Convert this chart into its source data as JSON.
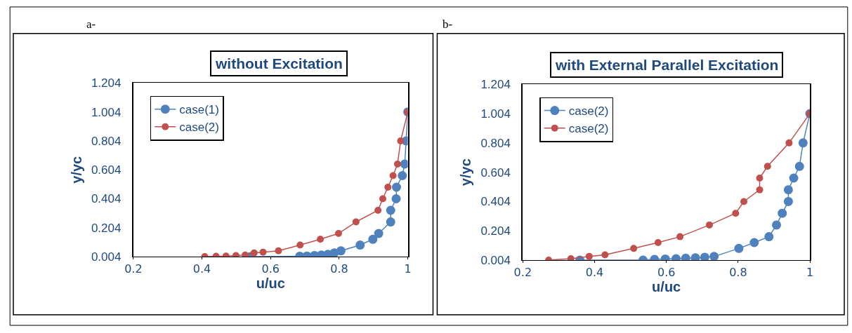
{
  "chart_data": [
    {
      "type": "line",
      "title": "without Excitation",
      "xlabel": "u/uc",
      "ylabel": "y/yc",
      "annotations": [
        "a-"
      ],
      "xlim": [
        0.2,
        1
      ],
      "xticks": [
        0.2,
        0.4,
        0.6,
        0.8,
        1
      ],
      "ylim": [
        0.004,
        1.204
      ],
      "yticks": [
        0.004,
        0.204,
        0.404,
        0.604,
        0.804,
        1.004,
        1.204
      ],
      "grid": false,
      "legend": "top left",
      "marker": "circle",
      "line_style": "solid",
      "series": [
        {
          "name": "case(1)",
          "color": "#4f81bd",
          "x": [
            0.542,
            0.685,
            0.706,
            0.728,
            0.748,
            0.767,
            0.786,
            0.805,
            0.861,
            0.898,
            0.915,
            0.95,
            0.95,
            0.966,
            0.967,
            0.984,
            0.991,
            0.995,
            1
          ],
          "values": [
            0.004,
            0.007,
            0.008,
            0.012,
            0.015,
            0.02,
            0.03,
            0.044,
            0.084,
            0.124,
            0.164,
            0.244,
            0.324,
            0.404,
            0.484,
            0.564,
            0.644,
            0.804,
            1.004
          ]
        },
        {
          "name": "case(2)",
          "color": "#c0504d",
          "x": [
            0.408,
            0.441,
            0.47,
            0.499,
            0.526,
            0.552,
            0.578,
            0.623,
            0.686,
            0.745,
            0.798,
            0.849,
            0.913,
            0.927,
            0.942,
            0.957,
            0.97,
            0.979,
            1
          ],
          "values": [
            0.004,
            0.007,
            0.008,
            0.011,
            0.015,
            0.03,
            0.035,
            0.044,
            0.084,
            0.124,
            0.164,
            0.244,
            0.324,
            0.404,
            0.484,
            0.564,
            0.644,
            0.804,
            1.004
          ]
        }
      ]
    },
    {
      "type": "line",
      "title": "with External Parallel Excitation",
      "xlabel": "u/uc",
      "ylabel": "y/yc",
      "annotations": [
        "b-"
      ],
      "xlim": [
        0.2,
        1
      ],
      "xticks": [
        0.2,
        0.4,
        0.6,
        0.8,
        1
      ],
      "ylim": [
        0.004,
        1.204
      ],
      "yticks": [
        0.004,
        0.204,
        0.404,
        0.604,
        0.804,
        1.004,
        1.204
      ],
      "grid": false,
      "legend": "top left",
      "marker": "circle",
      "line_style": "solid",
      "series": [
        {
          "name": "case(2)",
          "color": "#4f81bd",
          "x": [
            0.359,
            0.535,
            0.567,
            0.597,
            0.627,
            0.654,
            0.681,
            0.707,
            0.733,
            0.802,
            0.845,
            0.886,
            0.907,
            0.923,
            0.94,
            0.94,
            0.955,
            0.971,
            0.981,
            1
          ],
          "values": [
            0.004,
            0.004,
            0.009,
            0.012,
            0.014,
            0.017,
            0.02,
            0.024,
            0.029,
            0.084,
            0.124,
            0.164,
            0.244,
            0.324,
            0.404,
            0.484,
            0.564,
            0.644,
            0.804,
            1.004
          ]
        },
        {
          "name": "case(2)",
          "color": "#c0504d",
          "x": [
            0.272,
            0.334,
            0.385,
            0.429,
            0.509,
            0.577,
            0.638,
            0.72,
            0.793,
            0.816,
            0.86,
            0.86,
            0.882,
            0.942,
            1
          ],
          "values": [
            0.004,
            0.014,
            0.03,
            0.04,
            0.084,
            0.124,
            0.164,
            0.244,
            0.324,
            0.404,
            0.484,
            0.564,
            0.644,
            0.804,
            1.004
          ]
        }
      ]
    }
  ]
}
